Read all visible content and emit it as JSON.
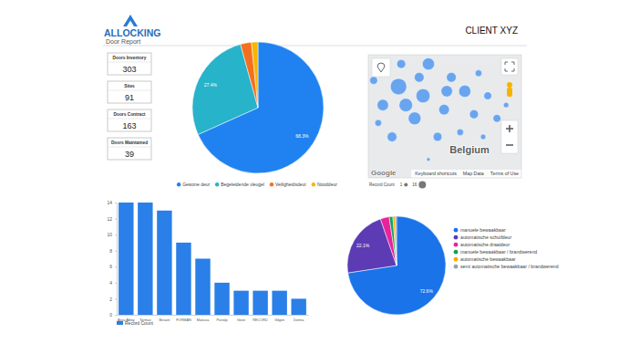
{
  "header": {
    "logo": "ALLOCKING",
    "subtitle": "Door Report",
    "client": "CLIENT XYZ"
  },
  "kpis": [
    {
      "label": "Doors Inventory",
      "value": 303
    },
    {
      "label": "Sites",
      "value": 91
    },
    {
      "label": "Doors Contract",
      "value": 163
    },
    {
      "label": "Doors Maintained",
      "value": 39
    }
  ],
  "chart_data": [
    {
      "type": "pie",
      "categories": [
        "Gewone deur",
        "Begeleidende vleugel",
        "Veiligheidsdeur",
        "Nooddeur"
      ],
      "values": [
        68.3,
        27.4,
        2.7,
        1.6
      ],
      "value_labels": [
        "68.3%",
        "27.4%",
        null,
        null
      ],
      "colors": [
        "#1f82f0",
        "#27b3c9",
        "#f4701e",
        "#f7b500"
      ],
      "data_labels": true,
      "legend": "bottom"
    },
    {
      "type": "bubble_map",
      "x": [
        3.39,
        4.03,
        4.17,
        2.98,
        3.81,
        4.58,
        4.77,
        5.12,
        5.36,
        5.96,
        3.22,
        4.41,
        5.0,
        3.46,
        2.74,
        5.48,
        5.72,
        4.65,
        3.93,
        2.86,
        4.89,
        4.17,
        3.58,
        6.2,
        5.6
      ],
      "values": [
        51.98,
        51.8,
        52.42,
        51.62,
        51.36,
        51.53,
        52.16,
        51.89,
        51.44,
        51.36,
        51.0,
        51.0,
        51.09,
        52.42,
        52.1,
        52.24,
        51.8,
        51.89,
        52.16,
        51.27,
        50.73,
        50.56,
        51.62,
        51.62,
        51.0
      ],
      "sizes": [
        16,
        12,
        9,
        8,
        10,
        7,
        6,
        9,
        5,
        4,
        6,
        5,
        3,
        5,
        4,
        3,
        4,
        8,
        6,
        3,
        2,
        1,
        11,
        2,
        2
      ],
      "xlim": [
        2.6,
        6.6
      ],
      "ylim": [
        50.2,
        52.6
      ],
      "color": "#3d8ef0",
      "tick_labels": false,
      "annotations": [
        "Belgium"
      ],
      "attribution": [
        "Google",
        "Keyboard shortcuts",
        "Map Data",
        "Terms of Use"
      ],
      "size_legend": {
        "title": "Record Count",
        "ticks": [
          1,
          16
        ]
      }
    },
    {
      "type": "bar",
      "categories": [
        "Assa Abloy",
        "Tormax",
        "Besam",
        "FORMAN",
        "Manusa",
        "Portalp",
        "Geze",
        "RECORD",
        "Gilgen",
        "Dorma"
      ],
      "series": [
        {
          "name": "Record Count",
          "color": "#2a7fe8",
          "values": [
            14,
            14,
            13,
            9,
            7,
            4,
            3,
            3,
            3,
            2
          ]
        }
      ],
      "ylim": [
        0,
        14
      ],
      "yticks": [
        0,
        2,
        4,
        6,
        8,
        10,
        12,
        14
      ],
      "grid": false,
      "legend": "bottom"
    },
    {
      "type": "pie",
      "categories": [
        "manuele bewaakbaar",
        "automatische schuifdeur",
        "automatische draaideur",
        "manuele bewaakbaar / brandwerend",
        "automatische bewaakbaar",
        "semi automatische bewaakbaar / brandwerend"
      ],
      "values": [
        72.6,
        22.1,
        2.9,
        1.2,
        0.7,
        0.5
      ],
      "value_labels": [
        "72.6%",
        "22.1%",
        null,
        null,
        null,
        null
      ],
      "colors": [
        "#1a73e8",
        "#5c3bb5",
        "#e8239b",
        "#12a25a",
        "#f6a800",
        "#9aa0a6"
      ],
      "data_labels": true,
      "legend": "right"
    }
  ]
}
